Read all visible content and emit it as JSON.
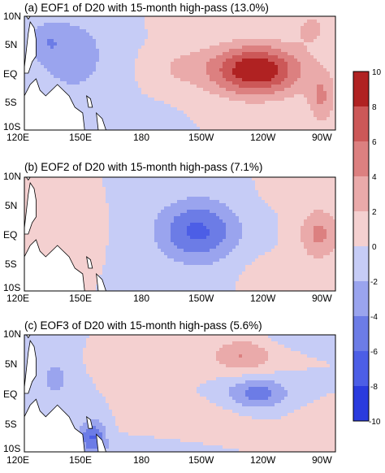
{
  "chart_data": [
    {
      "type": "heatmap",
      "title": "(a) EOF1 of D20 with 15-month high-pass (13.0%)",
      "x_tick_labels": [
        "120E",
        "150E",
        "180",
        "150W",
        "120W",
        "90W"
      ],
      "y_tick_labels": [
        "10N",
        "5N",
        "EQ",
        "5S",
        "10S"
      ],
      "xlim": [
        120,
        280
      ],
      "ylim": [
        -10,
        10
      ],
      "blobs": [
        {
          "lon": 239,
          "lat": 0.5,
          "sx": 24,
          "sy": 4.5,
          "value": 10
        },
        {
          "lon": 198,
          "lat": 1.0,
          "sx": 18,
          "sy": 4.0,
          "value": 1.8
        },
        {
          "lon": 273,
          "lat": -4.5,
          "sx": 7,
          "sy": 4.5,
          "value": 4.0
        },
        {
          "lon": 268,
          "lat": 8.0,
          "sx": 9,
          "sy": 3.0,
          "value": 2.5
        },
        {
          "lon": 197,
          "lat": 9.0,
          "sx": 10,
          "sy": 2.0,
          "value": 1.6
        },
        {
          "lon": 145,
          "lat": 3.0,
          "sx": 24,
          "sy": 9.0,
          "value": -2.7
        },
        {
          "lon": 132,
          "lat": 5.5,
          "sx": 9,
          "sy": 3.0,
          "value": -2.2
        },
        {
          "lon": 182,
          "lat": -8.5,
          "sx": 14,
          "sy": 3.0,
          "value": -1.0
        }
      ]
    },
    {
      "type": "heatmap",
      "title": "(b) EOF2 of D20 with 15-month high-pass (7.1%)",
      "x_tick_labels": [
        "120E",
        "150E",
        "180",
        "150W",
        "120W",
        "90W"
      ],
      "y_tick_labels": [
        "10N",
        "5N",
        "EQ",
        "5S",
        "10S"
      ],
      "xlim": [
        120,
        280
      ],
      "ylim": [
        -10,
        10
      ],
      "blobs": [
        {
          "lon": 209,
          "lat": 0.5,
          "sx": 21,
          "sy": 5.5,
          "value": -6.5
        },
        {
          "lon": 272,
          "lat": 0.0,
          "sx": 11,
          "sy": 4.5,
          "value": 4.5
        },
        {
          "lon": 250,
          "lat": -7.0,
          "sx": 16,
          "sy": 3.0,
          "value": 1.3
        },
        {
          "lon": 257,
          "lat": 8.0,
          "sx": 12,
          "sy": 3.0,
          "value": 1.1
        },
        {
          "lon": 128,
          "lat": 0.0,
          "sx": 6,
          "sy": 6.0,
          "value": 1.2
        },
        {
          "lon": 150,
          "lat": 1.0,
          "sx": 8,
          "sy": 4.0,
          "value": 0.9
        }
      ]
    },
    {
      "type": "heatmap",
      "title": "(c) EOF3 of D20 with 15-month high-pass (5.6%)",
      "x_tick_labels": [
        "120E",
        "150E",
        "180",
        "150W",
        "120W",
        "90W"
      ],
      "y_tick_labels": [
        "10N",
        "5N",
        "EQ",
        "5S",
        "10S"
      ],
      "xlim": [
        120,
        280
      ],
      "ylim": [
        -10,
        10
      ],
      "blobs": [
        {
          "lon": 232,
          "lat": 6.5,
          "sx": 16,
          "sy": 2.8,
          "value": 4.0
        },
        {
          "lon": 240,
          "lat": 0.0,
          "sx": 16,
          "sy": 2.5,
          "value": -5.0
        },
        {
          "lon": 155,
          "lat": -7.5,
          "sx": 7,
          "sy": 3.0,
          "value": -6.0
        },
        {
          "lon": 136,
          "lat": 2.5,
          "sx": 10,
          "sy": 4.0,
          "value": -2.5
        },
        {
          "lon": 185,
          "lat": 5.0,
          "sx": 25,
          "sy": 2.5,
          "value": 1.1
        },
        {
          "lon": 205,
          "lat": -4.5,
          "sx": 26,
          "sy": 3.0,
          "value": 1.3
        },
        {
          "lon": 180,
          "lat": -10.0,
          "sx": 25,
          "sy": 2.0,
          "value": -1.5
        },
        {
          "lon": 270,
          "lat": -6.0,
          "sx": 12,
          "sy": 3.0,
          "value": 1.5
        },
        {
          "lon": 260,
          "lat": 10.0,
          "sx": 16,
          "sy": 2.0,
          "value": -1.3
        }
      ]
    }
  ],
  "colorbar": {
    "ticks": [
      "10",
      "8",
      "6",
      "4",
      "2",
      "0",
      "-2",
      "-4",
      "-6",
      "-8",
      "-10"
    ],
    "levels": [
      -10,
      -8,
      -6,
      -4,
      -2,
      0,
      2,
      4,
      6,
      8,
      10
    ],
    "colors": [
      "#2a3bde",
      "#4c5ee6",
      "#6c7ce6",
      "#9aa4ee",
      "#c6ccf6",
      "#f4d0d0",
      "#eaaaaa",
      "#dc8080",
      "#cc5858",
      "#b02222"
    ]
  },
  "land_color": "#ffffff"
}
